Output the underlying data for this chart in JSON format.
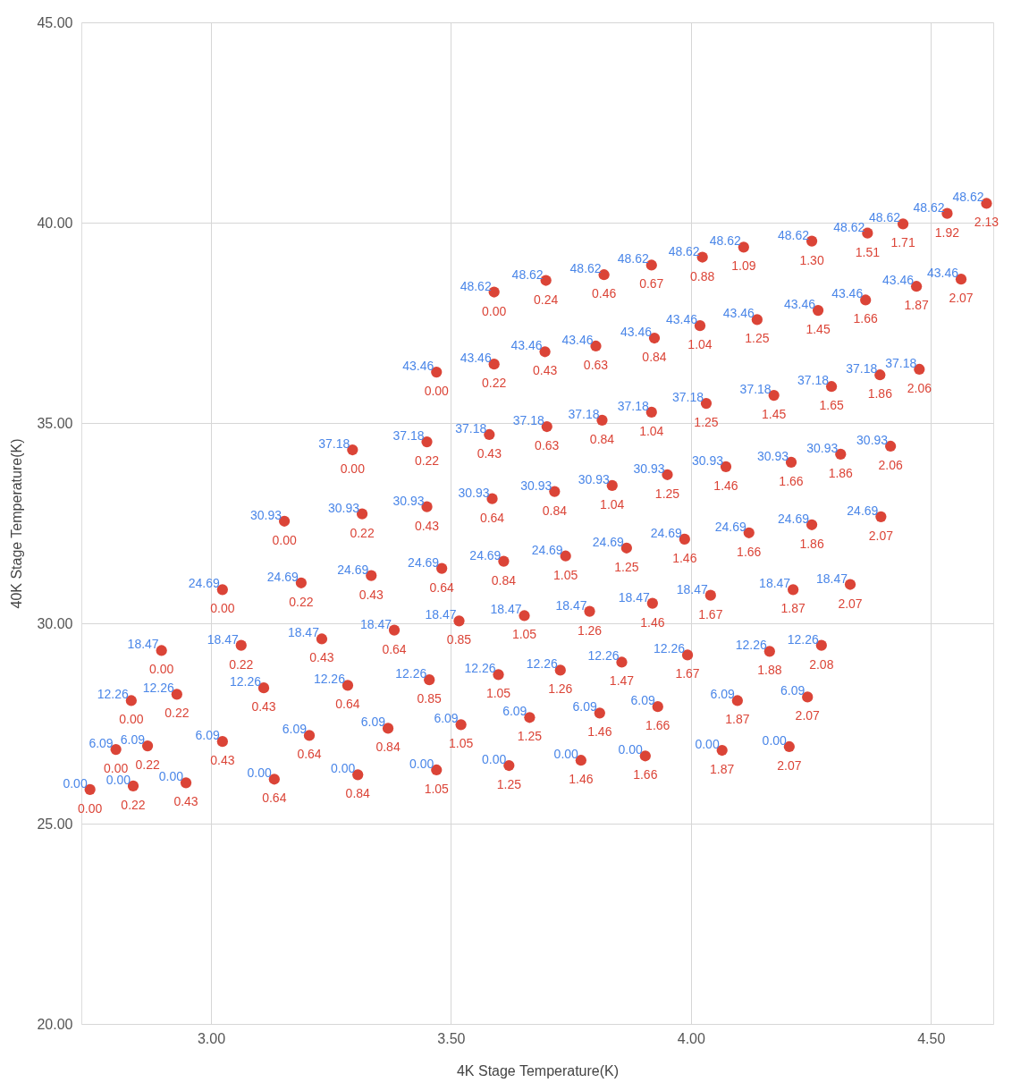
{
  "chart_data": {
    "type": "scatter",
    "xlabel": "4K Stage Temperature(K)",
    "ylabel": "40K Stage Temperature(K)",
    "xlim": [
      2.73,
      4.63
    ],
    "ylim": [
      20,
      45
    ],
    "xticks": [
      {
        "value": 3.0,
        "label": "3.00"
      },
      {
        "value": 3.5,
        "label": "3.50"
      },
      {
        "value": 4.0,
        "label": "4.00"
      },
      {
        "value": 4.5,
        "label": "4.50"
      }
    ],
    "yticks": [
      {
        "value": 20,
        "label": "20.00"
      },
      {
        "value": 25,
        "label": "25.00"
      },
      {
        "value": 30,
        "label": "30.00"
      },
      {
        "value": 35,
        "label": "35.00"
      },
      {
        "value": 40,
        "label": "40.00"
      },
      {
        "value": 45,
        "label": "45.00"
      }
    ],
    "grid": true,
    "marker": "circle",
    "series": [
      {
        "type": "scatter",
        "color": "#db4437",
        "x": [
          2.748,
          2.838,
          2.948,
          3.132,
          3.306,
          3.47,
          3.621,
          3.771,
          3.905,
          4.065,
          4.205,
          2.802,
          2.868,
          3.024,
          3.205,
          3.369,
          3.521,
          3.664,
          3.81,
          3.931,
          4.097,
          4.243,
          2.834,
          2.929,
          3.11,
          3.285,
          3.455,
          3.599,
          3.728,
          3.856,
          3.993,
          4.164,
          4.272,
          2.897,
          3.063,
          3.231,
          3.382,
          3.517,
          3.653,
          3.789,
          3.92,
          4.041,
          4.213,
          4.332,
          3.024,
          3.188,
          3.334,
          3.481,
          3.61,
          3.739,
          3.866,
          3.987,
          4.121,
          4.252,
          4.396,
          3.153,
          3.315,
          3.45,
          3.586,
          3.716,
          3.836,
          3.951,
          4.073,
          4.209,
          4.312,
          4.416,
          3.295,
          3.45,
          3.58,
          3.7,
          3.815,
          3.918,
          4.032,
          4.173,
          4.293,
          4.394,
          4.476,
          3.47,
          3.59,
          3.696,
          3.802,
          3.924,
          4.019,
          4.138,
          4.265,
          4.364,
          4.47,
          4.563,
          3.59,
          3.698,
          3.819,
          3.918,
          4.024,
          4.11,
          4.252,
          4.368,
          4.442,
          4.534,
          4.616
        ],
        "values": [
          25.85,
          25.94,
          26.02,
          26.11,
          26.22,
          26.34,
          26.45,
          26.58,
          26.69,
          26.83,
          26.92,
          26.85,
          26.94,
          27.05,
          27.2,
          27.38,
          27.47,
          27.65,
          27.76,
          27.92,
          28.07,
          28.16,
          28.07,
          28.23,
          28.39,
          28.45,
          28.59,
          28.72,
          28.83,
          29.03,
          29.21,
          29.3,
          29.45,
          29.32,
          29.45,
          29.61,
          29.83,
          30.06,
          30.19,
          30.3,
          30.5,
          30.7,
          30.84,
          30.97,
          30.84,
          31.01,
          31.19,
          31.37,
          31.55,
          31.68,
          31.88,
          32.1,
          32.26,
          32.46,
          32.66,
          32.55,
          32.73,
          32.91,
          33.11,
          33.29,
          33.44,
          33.71,
          33.91,
          34.02,
          34.22,
          34.42,
          34.33,
          34.53,
          34.71,
          34.91,
          35.07,
          35.27,
          35.49,
          35.69,
          35.91,
          36.2,
          36.34,
          36.27,
          36.47,
          36.78,
          36.92,
          37.12,
          37.43,
          37.58,
          37.81,
          38.07,
          38.41,
          38.59,
          38.27,
          38.56,
          38.7,
          38.94,
          39.14,
          39.39,
          39.54,
          39.74,
          39.97,
          40.23,
          40.48
        ]
      }
    ],
    "annotations": [
      {
        "text": "0.00",
        "x": 2.748,
        "y": 25.85
      },
      {
        "text": "0.00",
        "x": 2.748,
        "y": 25.85
      },
      {
        "text": "0.00",
        "x": 2.838,
        "y": 25.94
      },
      {
        "text": "0.22",
        "x": 2.838,
        "y": 25.94
      },
      {
        "text": "0.00",
        "x": 2.948,
        "y": 26.02
      },
      {
        "text": "0.43",
        "x": 2.948,
        "y": 26.02
      },
      {
        "text": "0.00",
        "x": 3.132,
        "y": 26.11
      },
      {
        "text": "0.64",
        "x": 3.132,
        "y": 26.11
      },
      {
        "text": "0.00",
        "x": 3.306,
        "y": 26.22
      },
      {
        "text": "0.84",
        "x": 3.306,
        "y": 26.22
      },
      {
        "text": "0.00",
        "x": 3.47,
        "y": 26.34
      },
      {
        "text": "1.05",
        "x": 3.47,
        "y": 26.34
      },
      {
        "text": "0.00",
        "x": 3.621,
        "y": 26.45
      },
      {
        "text": "1.25",
        "x": 3.621,
        "y": 26.45
      },
      {
        "text": "0.00",
        "x": 3.771,
        "y": 26.58
      },
      {
        "text": "1.46",
        "x": 3.771,
        "y": 26.58
      },
      {
        "text": "0.00",
        "x": 3.905,
        "y": 26.69
      },
      {
        "text": "1.66",
        "x": 3.905,
        "y": 26.69
      },
      {
        "text": "0.00",
        "x": 4.065,
        "y": 26.83
      },
      {
        "text": "1.87",
        "x": 4.065,
        "y": 26.83
      },
      {
        "text": "0.00",
        "x": 4.205,
        "y": 26.92
      },
      {
        "text": "2.07",
        "x": 4.205,
        "y": 26.92
      },
      {
        "text": "6.09",
        "x": 2.802,
        "y": 26.85
      },
      {
        "text": "0.00",
        "x": 2.802,
        "y": 26.85
      },
      {
        "text": "6.09",
        "x": 2.868,
        "y": 26.94
      },
      {
        "text": "0.22",
        "x": 2.868,
        "y": 26.94
      },
      {
        "text": "6.09",
        "x": 3.024,
        "y": 27.05
      },
      {
        "text": "0.43",
        "x": 3.024,
        "y": 27.05
      },
      {
        "text": "6.09",
        "x": 3.205,
        "y": 27.2
      },
      {
        "text": "0.64",
        "x": 3.205,
        "y": 27.2
      },
      {
        "text": "6.09",
        "x": 3.369,
        "y": 27.38
      },
      {
        "text": "0.84",
        "x": 3.369,
        "y": 27.38
      },
      {
        "text": "6.09",
        "x": 3.521,
        "y": 27.47
      },
      {
        "text": "1.05",
        "x": 3.521,
        "y": 27.47
      },
      {
        "text": "6.09",
        "x": 3.664,
        "y": 27.65
      },
      {
        "text": "1.25",
        "x": 3.664,
        "y": 27.65
      },
      {
        "text": "6.09",
        "x": 3.81,
        "y": 27.76
      },
      {
        "text": "1.46",
        "x": 3.81,
        "y": 27.76
      },
      {
        "text": "6.09",
        "x": 3.931,
        "y": 27.92
      },
      {
        "text": "1.66",
        "x": 3.931,
        "y": 27.92
      },
      {
        "text": "6.09",
        "x": 4.097,
        "y": 28.07
      },
      {
        "text": "1.87",
        "x": 4.097,
        "y": 28.07
      },
      {
        "text": "6.09",
        "x": 4.243,
        "y": 28.16
      },
      {
        "text": "2.07",
        "x": 4.243,
        "y": 28.16
      },
      {
        "text": "12.26",
        "x": 2.834,
        "y": 28.07
      },
      {
        "text": "0.00",
        "x": 2.834,
        "y": 28.07
      },
      {
        "text": "12.26",
        "x": 2.929,
        "y": 28.23
      },
      {
        "text": "0.22",
        "x": 2.929,
        "y": 28.23
      },
      {
        "text": "12.26",
        "x": 3.11,
        "y": 28.39
      },
      {
        "text": "0.43",
        "x": 3.11,
        "y": 28.39
      },
      {
        "text": "12.26",
        "x": 3.285,
        "y": 28.45
      },
      {
        "text": "0.64",
        "x": 3.285,
        "y": 28.45
      },
      {
        "text": "12.26",
        "x": 3.455,
        "y": 28.59
      },
      {
        "text": "0.85",
        "x": 3.455,
        "y": 28.59
      },
      {
        "text": "12.26",
        "x": 3.599,
        "y": 28.72
      },
      {
        "text": "1.05",
        "x": 3.599,
        "y": 28.72
      },
      {
        "text": "12.26",
        "x": 3.728,
        "y": 28.83
      },
      {
        "text": "1.26",
        "x": 3.728,
        "y": 28.83
      },
      {
        "text": "12.26",
        "x": 3.856,
        "y": 29.03
      },
      {
        "text": "1.47",
        "x": 3.856,
        "y": 29.03
      },
      {
        "text": "12.26",
        "x": 3.993,
        "y": 29.21
      },
      {
        "text": "1.67",
        "x": 3.993,
        "y": 29.21
      },
      {
        "text": "12.26",
        "x": 4.164,
        "y": 29.3
      },
      {
        "text": "1.88",
        "x": 4.164,
        "y": 29.3
      },
      {
        "text": "12.26",
        "x": 4.272,
        "y": 29.45
      },
      {
        "text": "2.08",
        "x": 4.272,
        "y": 29.45
      },
      {
        "text": "18.47",
        "x": 2.897,
        "y": 29.32
      },
      {
        "text": "0.00",
        "x": 2.897,
        "y": 29.32
      },
      {
        "text": "18.47",
        "x": 3.063,
        "y": 29.45
      },
      {
        "text": "0.22",
        "x": 3.063,
        "y": 29.45
      },
      {
        "text": "18.47",
        "x": 3.231,
        "y": 29.61
      },
      {
        "text": "0.43",
        "x": 3.231,
        "y": 29.61
      },
      {
        "text": "18.47",
        "x": 3.382,
        "y": 29.83
      },
      {
        "text": "0.64",
        "x": 3.382,
        "y": 29.83
      },
      {
        "text": "18.47",
        "x": 3.517,
        "y": 30.06
      },
      {
        "text": "0.85",
        "x": 3.517,
        "y": 30.06
      },
      {
        "text": "18.47",
        "x": 3.653,
        "y": 30.19
      },
      {
        "text": "1.05",
        "x": 3.653,
        "y": 30.19
      },
      {
        "text": "18.47",
        "x": 3.789,
        "y": 30.3
      },
      {
        "text": "1.26",
        "x": 3.789,
        "y": 30.3
      },
      {
        "text": "18.47",
        "x": 3.92,
        "y": 30.5
      },
      {
        "text": "1.46",
        "x": 3.92,
        "y": 30.5
      },
      {
        "text": "18.47",
        "x": 4.041,
        "y": 30.7
      },
      {
        "text": "1.67",
        "x": 4.041,
        "y": 30.7
      },
      {
        "text": "18.47",
        "x": 4.213,
        "y": 30.84
      },
      {
        "text": "1.87",
        "x": 4.213,
        "y": 30.84
      },
      {
        "text": "18.47",
        "x": 4.332,
        "y": 30.97
      },
      {
        "text": "2.07",
        "x": 4.332,
        "y": 30.97
      },
      {
        "text": "24.69",
        "x": 3.024,
        "y": 30.84
      },
      {
        "text": "0.00",
        "x": 3.024,
        "y": 30.84
      },
      {
        "text": "24.69",
        "x": 3.188,
        "y": 31.01
      },
      {
        "text": "0.22",
        "x": 3.188,
        "y": 31.01
      },
      {
        "text": "24.69",
        "x": 3.334,
        "y": 31.19
      },
      {
        "text": "0.43",
        "x": 3.334,
        "y": 31.19
      },
      {
        "text": "24.69",
        "x": 3.481,
        "y": 31.37
      },
      {
        "text": "0.64",
        "x": 3.481,
        "y": 31.37
      },
      {
        "text": "24.69",
        "x": 3.61,
        "y": 31.55
      },
      {
        "text": "0.84",
        "x": 3.61,
        "y": 31.55
      },
      {
        "text": "24.69",
        "x": 3.739,
        "y": 31.68
      },
      {
        "text": "1.05",
        "x": 3.739,
        "y": 31.68
      },
      {
        "text": "24.69",
        "x": 3.866,
        "y": 31.88
      },
      {
        "text": "1.25",
        "x": 3.866,
        "y": 31.88
      },
      {
        "text": "24.69",
        "x": 3.987,
        "y": 32.1
      },
      {
        "text": "1.46",
        "x": 3.987,
        "y": 32.1
      },
      {
        "text": "24.69",
        "x": 4.121,
        "y": 32.26
      },
      {
        "text": "1.66",
        "x": 4.121,
        "y": 32.26
      },
      {
        "text": "24.69",
        "x": 4.252,
        "y": 32.46
      },
      {
        "text": "1.86",
        "x": 4.252,
        "y": 32.46
      },
      {
        "text": "24.69",
        "x": 4.396,
        "y": 32.66
      },
      {
        "text": "2.07",
        "x": 4.396,
        "y": 32.66
      },
      {
        "text": "30.93",
        "x": 3.153,
        "y": 32.55
      },
      {
        "text": "0.00",
        "x": 3.153,
        "y": 32.55
      },
      {
        "text": "30.93",
        "x": 3.315,
        "y": 32.73
      },
      {
        "text": "0.22",
        "x": 3.315,
        "y": 32.73
      },
      {
        "text": "30.93",
        "x": 3.45,
        "y": 32.91
      },
      {
        "text": "0.43",
        "x": 3.45,
        "y": 32.91
      },
      {
        "text": "30.93",
        "x": 3.586,
        "y": 33.11
      },
      {
        "text": "0.64",
        "x": 3.586,
        "y": 33.11
      },
      {
        "text": "30.93",
        "x": 3.716,
        "y": 33.29
      },
      {
        "text": "0.84",
        "x": 3.716,
        "y": 33.29
      },
      {
        "text": "30.93",
        "x": 3.836,
        "y": 33.44
      },
      {
        "text": "1.04",
        "x": 3.836,
        "y": 33.44
      },
      {
        "text": "30.93",
        "x": 3.951,
        "y": 33.71
      },
      {
        "text": "1.25",
        "x": 3.951,
        "y": 33.71
      },
      {
        "text": "30.93",
        "x": 4.073,
        "y": 33.91
      },
      {
        "text": "1.46",
        "x": 4.073,
        "y": 33.91
      },
      {
        "text": "30.93",
        "x": 4.209,
        "y": 34.02
      },
      {
        "text": "1.66",
        "x": 4.209,
        "y": 34.02
      },
      {
        "text": "30.93",
        "x": 4.312,
        "y": 34.22
      },
      {
        "text": "1.86",
        "x": 4.312,
        "y": 34.22
      },
      {
        "text": "30.93",
        "x": 4.416,
        "y": 34.42
      },
      {
        "text": "2.06",
        "x": 4.416,
        "y": 34.42
      },
      {
        "text": "37.18",
        "x": 3.295,
        "y": 34.33
      },
      {
        "text": "0.00",
        "x": 3.295,
        "y": 34.33
      },
      {
        "text": "37.18",
        "x": 3.45,
        "y": 34.53
      },
      {
        "text": "0.22",
        "x": 3.45,
        "y": 34.53
      },
      {
        "text": "37.18",
        "x": 3.58,
        "y": 34.71
      },
      {
        "text": "0.43",
        "x": 3.58,
        "y": 34.71
      },
      {
        "text": "37.18",
        "x": 3.7,
        "y": 34.91
      },
      {
        "text": "0.63",
        "x": 3.7,
        "y": 34.91
      },
      {
        "text": "37.18",
        "x": 3.815,
        "y": 35.07
      },
      {
        "text": "0.84",
        "x": 3.815,
        "y": 35.07
      },
      {
        "text": "37.18",
        "x": 3.918,
        "y": 35.27
      },
      {
        "text": "1.04",
        "x": 3.918,
        "y": 35.27
      },
      {
        "text": "37.18",
        "x": 4.032,
        "y": 35.49
      },
      {
        "text": "1.25",
        "x": 4.032,
        "y": 35.49
      },
      {
        "text": "37.18",
        "x": 4.173,
        "y": 35.69
      },
      {
        "text": "1.45",
        "x": 4.173,
        "y": 35.69
      },
      {
        "text": "37.18",
        "x": 4.293,
        "y": 35.91
      },
      {
        "text": "1.65",
        "x": 4.293,
        "y": 35.91
      },
      {
        "text": "37.18",
        "x": 4.394,
        "y": 36.2
      },
      {
        "text": "1.86",
        "x": 4.394,
        "y": 36.2
      },
      {
        "text": "37.18",
        "x": 4.476,
        "y": 36.34
      },
      {
        "text": "2.06",
        "x": 4.476,
        "y": 36.34
      },
      {
        "text": "43.46",
        "x": 3.47,
        "y": 36.27
      },
      {
        "text": "0.00",
        "x": 3.47,
        "y": 36.27
      },
      {
        "text": "43.46",
        "x": 3.59,
        "y": 36.47
      },
      {
        "text": "0.22",
        "x": 3.59,
        "y": 36.47
      },
      {
        "text": "43.46",
        "x": 3.696,
        "y": 36.78
      },
      {
        "text": "0.43",
        "x": 3.696,
        "y": 36.78
      },
      {
        "text": "43.46",
        "x": 3.802,
        "y": 36.92
      },
      {
        "text": "0.63",
        "x": 3.802,
        "y": 36.92
      },
      {
        "text": "43.46",
        "x": 3.924,
        "y": 37.12
      },
      {
        "text": "0.84",
        "x": 3.924,
        "y": 37.12
      },
      {
        "text": "43.46",
        "x": 4.019,
        "y": 37.43
      },
      {
        "text": "1.04",
        "x": 4.019,
        "y": 37.43
      },
      {
        "text": "43.46",
        "x": 4.138,
        "y": 37.58
      },
      {
        "text": "1.25",
        "x": 4.138,
        "y": 37.58
      },
      {
        "text": "43.46",
        "x": 4.265,
        "y": 37.81
      },
      {
        "text": "1.45",
        "x": 4.265,
        "y": 37.81
      },
      {
        "text": "43.46",
        "x": 4.364,
        "y": 38.07
      },
      {
        "text": "1.66",
        "x": 4.364,
        "y": 38.07
      },
      {
        "text": "43.46",
        "x": 4.47,
        "y": 38.41
      },
      {
        "text": "1.87",
        "x": 4.47,
        "y": 38.41
      },
      {
        "text": "43.46",
        "x": 4.563,
        "y": 38.59
      },
      {
        "text": "2.07",
        "x": 4.563,
        "y": 38.59
      },
      {
        "text": "48.62",
        "x": 3.59,
        "y": 38.27
      },
      {
        "text": "0.00",
        "x": 3.59,
        "y": 38.27
      },
      {
        "text": "48.62",
        "x": 3.698,
        "y": 38.56
      },
      {
        "text": "0.24",
        "x": 3.698,
        "y": 38.56
      },
      {
        "text": "48.62",
        "x": 3.819,
        "y": 38.7
      },
      {
        "text": "0.46",
        "x": 3.819,
        "y": 38.7
      },
      {
        "text": "48.62",
        "x": 3.918,
        "y": 38.94
      },
      {
        "text": "0.67",
        "x": 3.918,
        "y": 38.94
      },
      {
        "text": "48.62",
        "x": 4.024,
        "y": 39.14
      },
      {
        "text": "0.88",
        "x": 4.024,
        "y": 39.14
      },
      {
        "text": "48.62",
        "x": 4.11,
        "y": 39.39
      },
      {
        "text": "1.09",
        "x": 4.11,
        "y": 39.39
      },
      {
        "text": "48.62",
        "x": 4.252,
        "y": 39.54
      },
      {
        "text": "1.30",
        "x": 4.252,
        "y": 39.54
      },
      {
        "text": "48.62",
        "x": 4.368,
        "y": 39.74
      },
      {
        "text": "1.51",
        "x": 4.368,
        "y": 39.74
      },
      {
        "text": "48.62",
        "x": 4.442,
        "y": 39.97
      },
      {
        "text": "1.71",
        "x": 4.442,
        "y": 39.97
      },
      {
        "text": "48.62",
        "x": 4.534,
        "y": 40.23
      },
      {
        "text": "1.92",
        "x": 4.534,
        "y": 40.23
      },
      {
        "text": "48.62",
        "x": 4.616,
        "y": 40.48
      },
      {
        "text": "2.13",
        "x": 4.616,
        "y": 40.48
      }
    ]
  }
}
